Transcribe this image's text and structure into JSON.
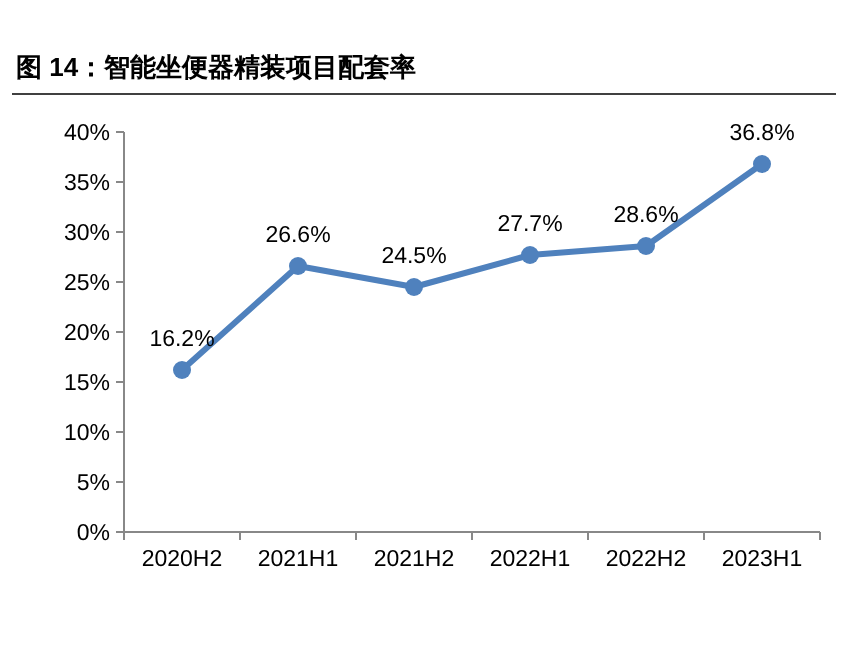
{
  "chart_data": {
    "type": "line",
    "title": "图 14：智能坐便器精装项目配套率",
    "categories": [
      "2020H2",
      "2021H1",
      "2021H2",
      "2022H1",
      "2022H2",
      "2023H1"
    ],
    "values": [
      16.2,
      26.6,
      24.5,
      27.7,
      28.6,
      36.8
    ],
    "value_labels": [
      "16.2%",
      "26.6%",
      "24.5%",
      "27.7%",
      "28.6%",
      "36.8%"
    ],
    "color": "#4f81bd",
    "marker": "circle",
    "ylim": [
      0,
      40
    ],
    "yticks": [
      {
        "value": 0,
        "label": "0%"
      },
      {
        "value": 5,
        "label": "5%"
      },
      {
        "value": 10,
        "label": "10%"
      },
      {
        "value": 15,
        "label": "15%"
      },
      {
        "value": 20,
        "label": "20%"
      },
      {
        "value": 25,
        "label": "25%"
      },
      {
        "value": 30,
        "label": "30%"
      },
      {
        "value": 35,
        "label": "35%"
      },
      {
        "value": 40,
        "label": "40%"
      }
    ]
  }
}
